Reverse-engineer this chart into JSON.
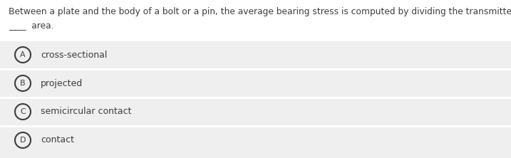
{
  "top_bg_color": "#ffffff",
  "option_bg_color": "#efefef",
  "divider_color": "#ffffff",
  "question_line1": "Between a plate and the body of a bolt or a pin, the average bearing stress is computed by dividing the transmitted force by the",
  "question_line2": "____  area.",
  "options": [
    {
      "label": "A",
      "text": "cross-sectional"
    },
    {
      "label": "B",
      "text": "projected"
    },
    {
      "label": "C",
      "text": "semicircular contact"
    },
    {
      "label": "D",
      "text": "contact"
    }
  ],
  "font_size_question": 8.8,
  "font_size_options": 9.0,
  "font_size_label": 8.0,
  "text_color": "#3d3d3d",
  "circle_edge_color": "#3d3d3d",
  "figwidth": 7.17,
  "figheight": 2.22,
  "dpi": 100
}
